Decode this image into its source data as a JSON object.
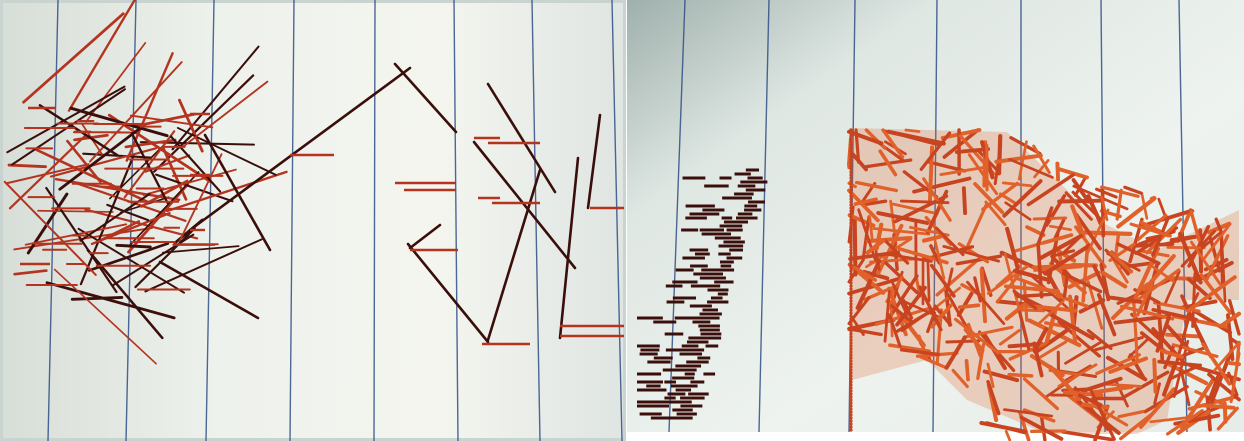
{
  "photos": [
    {
      "subject": "photo-left",
      "colors": {
        "screen": "#eef2ec",
        "screen_edge": "#c9d3cf",
        "grid": "#2f4f86",
        "mark_dark": "#3a0f0b",
        "mark_red": "#b5341f"
      }
    },
    {
      "subject": "photo-right",
      "colors": {
        "screen": "#eef3ef",
        "screen_edge": "#b7c4c2",
        "grid": "#2f4f86",
        "mark_dark": "#3a0f0b",
        "mark_red": "#c8431f",
        "mark_orange": "#e0612a"
      }
    }
  ]
}
